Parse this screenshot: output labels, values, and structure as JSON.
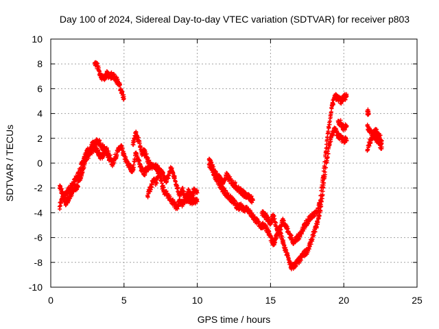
{
  "chart_data": {
    "type": "scatter",
    "title": "Day 100 of 2024, Sidereal Day-to-day VTEC variation (SDTVAR) for receiver p803",
    "xlabel": "GPS time / hours",
    "ylabel": "SDTVAR / TECUs",
    "xlim": [
      0,
      25
    ],
    "ylim": [
      -10,
      10
    ],
    "x_ticks": [
      0,
      5,
      10,
      15,
      20,
      25
    ],
    "y_ticks": [
      -10,
      -8,
      -6,
      -4,
      -2,
      0,
      2,
      4,
      6,
      8,
      10
    ],
    "grid": true,
    "marker": "+",
    "colors": {
      "series": "#ff0000",
      "grid": "#a0a0a0",
      "axis": "#000000"
    },
    "series": [
      {
        "name": "SDTVAR",
        "segments": [
          {
            "x": [
              0.6,
              0.8,
              1.0,
              1.2,
              1.4,
              1.6,
              1.8,
              2.0,
              2.2,
              2.4,
              2.6,
              2.8,
              3.0,
              3.2,
              3.4,
              3.6,
              3.8,
              4.0,
              4.2,
              4.4,
              4.6,
              4.8,
              5.0,
              5.2,
              5.4,
              5.6,
              5.8,
              6.0,
              6.2,
              6.4,
              6.6,
              6.8,
              7.0,
              7.2,
              7.4,
              7.6,
              7.8,
              8.0,
              8.2,
              8.4,
              8.6,
              8.8,
              9.0,
              9.2,
              9.4,
              9.6,
              9.8,
              10.0
            ],
            "y": [
              -3.5,
              -2.8,
              -2.6,
              -2.2,
              -1.9,
              -1.5,
              -1.1,
              -0.6,
              0.2,
              0.7,
              1.1,
              1.0,
              1.2,
              0.9,
              0.5,
              0.7,
              1.1,
              0.6,
              -0.1,
              0.5,
              1.0,
              1.3,
              0.6,
              0.0,
              -0.3,
              -0.6,
              0.8,
              0.2,
              -0.6,
              -0.8,
              -0.3,
              -0.4,
              -0.1,
              -0.3,
              -0.6,
              -0.8,
              -1.4,
              -1.2,
              -0.4,
              -1.0,
              -1.8,
              -2.6,
              -2.2,
              -2.9,
              -2.3,
              -2.7,
              -2.1,
              -2.4
            ]
          },
          {
            "x": [
              0.6,
              0.8,
              1.0,
              1.2,
              1.4,
              1.6,
              1.8,
              2.0,
              2.2,
              2.4,
              2.6,
              2.8,
              3.0,
              3.2,
              3.4,
              3.6,
              3.8,
              4.0
            ],
            "y": [
              -2.0,
              -2.3,
              -3.2,
              -2.9,
              -2.5,
              -2.0,
              -1.9,
              -1.2,
              -0.5,
              0.3,
              0.6,
              1.4,
              1.7,
              1.8,
              1.5,
              1.2,
              0.9,
              0.3
            ]
          },
          {
            "x": [
              3.0,
              3.2,
              3.4,
              3.6,
              3.8,
              4.0,
              4.2,
              4.4,
              4.6,
              4.8,
              5.0
            ],
            "y": [
              8.1,
              7.8,
              7.1,
              6.8,
              7.2,
              7.0,
              7.1,
              6.9,
              6.5,
              5.9,
              5.2
            ]
          },
          {
            "x": [
              5.6,
              5.8,
              6.0,
              6.2,
              6.4,
              6.6,
              6.8
            ],
            "y": [
              1.5,
              2.4,
              1.8,
              0.8,
              1.0,
              0.3,
              -0.2
            ]
          },
          {
            "x": [
              6.6,
              6.8,
              7.0,
              7.2,
              7.4,
              7.6,
              7.8,
              8.0,
              8.2,
              8.4,
              8.6,
              8.8,
              9.0,
              9.2,
              9.4,
              9.6,
              9.8,
              10.0
            ],
            "y": [
              -2.6,
              -2.0,
              -1.4,
              -1.6,
              -0.4,
              -1.9,
              -2.4,
              -2.6,
              -3.0,
              -3.2,
              -3.6,
              -3.1,
              -3.3,
              -3.0,
              -2.8,
              -3.2,
              -3.0,
              -3.1
            ]
          },
          {
            "x": [
              10.8,
              11.0,
              11.2,
              11.4,
              11.6,
              11.8,
              12.0,
              12.2,
              12.4,
              12.6,
              12.8,
              13.0,
              13.2,
              13.4,
              13.6,
              13.8,
              14.0,
              14.2,
              14.4,
              14.6,
              14.8,
              15.0,
              15.2,
              15.4,
              15.6,
              15.8,
              16.0,
              16.2,
              16.4,
              16.6,
              16.8,
              17.0,
              17.2,
              17.4,
              17.6,
              17.8,
              18.0,
              18.2,
              18.4,
              18.6,
              18.8,
              19.0,
              19.2,
              19.4,
              19.6,
              19.8,
              20.0,
              20.2
            ],
            "y": [
              -0.1,
              -0.5,
              -1.0,
              -1.4,
              -1.9,
              -2.2,
              -2.5,
              -2.8,
              -3.0,
              -3.3,
              -3.6,
              -3.5,
              -3.7,
              -3.6,
              -4.0,
              -4.3,
              -4.6,
              -4.9,
              -5.1,
              -5.0,
              -5.4,
              -6.0,
              -6.6,
              -5.8,
              -5.2,
              -6.2,
              -7.0,
              -7.6,
              -8.4,
              -8.3,
              -8.0,
              -7.8,
              -7.4,
              -7.2,
              -6.9,
              -6.2,
              -5.5,
              -4.8,
              -3.8,
              -2.0,
              0.0,
              1.4,
              2.4,
              2.8,
              2.2,
              2.0,
              1.9,
              1.8
            ]
          },
          {
            "x": [
              10.8,
              11.0,
              11.2,
              11.4,
              11.6,
              11.8,
              12.0,
              12.2,
              12.4,
              12.6,
              12.8,
              13.0,
              13.2,
              13.4,
              13.6,
              13.8
            ],
            "y": [
              0.3,
              -0.2,
              -0.8,
              -1.0,
              -1.4,
              -1.5,
              -1.0,
              -1.3,
              -1.6,
              -1.8,
              -2.1,
              -2.3,
              -2.5,
              -2.6,
              -2.8,
              -3.0
            ]
          },
          {
            "x": [
              14.4,
              14.6,
              14.8,
              15.0,
              15.2,
              15.4,
              15.6,
              15.8,
              16.0,
              16.2,
              16.4,
              16.6,
              16.8,
              17.0,
              17.2,
              17.4,
              17.6,
              17.8,
              18.0,
              18.2,
              18.4,
              18.6,
              18.8,
              19.0,
              19.2,
              19.4,
              19.6,
              19.8,
              20.0,
              20.2
            ],
            "y": [
              -4.0,
              -4.2,
              -4.5,
              -4.8,
              -4.3,
              -5.1,
              -5.7,
              -4.6,
              -4.9,
              -5.5,
              -6.0,
              -6.4,
              -6.1,
              -5.8,
              -5.3,
              -4.9,
              -4.6,
              -4.3,
              -4.1,
              -4.0,
              -3.0,
              -1.0,
              1.2,
              3.1,
              4.6,
              5.4,
              5.2,
              5.0,
              5.3,
              5.4
            ]
          },
          {
            "x": [
              19.6,
              19.8,
              20.0,
              20.2
            ],
            "y": [
              3.4,
              3.2,
              2.8,
              3.0
            ]
          },
          {
            "x": [
              21.6,
              21.7
            ],
            "y": [
              4.2,
              4.0
            ]
          },
          {
            "x": [
              21.6,
              21.8,
              22.0,
              22.2,
              22.4,
              22.6
            ],
            "y": [
              1.0,
              1.8,
              2.3,
              2.7,
              2.2,
              1.8
            ]
          },
          {
            "x": [
              21.6,
              21.8,
              22.0,
              22.2,
              22.4,
              22.6
            ],
            "y": [
              3.0,
              2.6,
              2.2,
              2.0,
              1.6,
              1.3
            ]
          }
        ]
      }
    ]
  }
}
